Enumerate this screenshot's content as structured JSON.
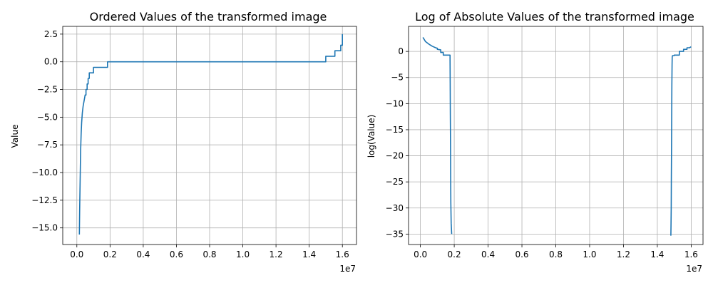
{
  "chart_data": [
    {
      "type": "line",
      "title": "Ordered Values of the transformed image",
      "xlabel": "",
      "ylabel": "Value",
      "x_multiplier_label": "1e7",
      "xlim": [
        -0.085,
        1.685
      ],
      "ylim": [
        -16.5,
        3.2
      ],
      "xticks": [
        0.0,
        0.2,
        0.4,
        0.6,
        0.8,
        1.0,
        1.2,
        1.4,
        1.6
      ],
      "xtick_labels": [
        "0.0",
        "0.2",
        "0.4",
        "0.6",
        "0.8",
        "1.0",
        "1.2",
        "1.4",
        "1.6"
      ],
      "yticks": [
        2.5,
        0.0,
        -2.5,
        -5.0,
        -7.5,
        -10.0,
        -12.5,
        -15.0
      ],
      "ytick_labels": [
        "2.5",
        "0.0",
        "−2.5",
        "−5.0",
        "−7.5",
        "−10.0",
        "−12.5",
        "−15.0"
      ],
      "grid": true,
      "color": "#1f77b4",
      "series": [
        {
          "x": [
            0.015,
            0.017,
            0.019,
            0.021,
            0.023,
            0.026,
            0.029,
            0.033,
            0.038,
            0.044,
            0.05,
            0.055,
            0.055,
            0.062,
            0.062,
            0.068,
            0.068,
            0.075,
            0.075,
            0.085,
            0.085,
            0.1,
            0.1,
            0.12,
            0.12,
            0.15,
            0.15,
            0.185,
            0.185,
            1.5,
            1.5,
            1.555,
            1.555,
            1.59,
            1.59,
            1.6,
            1.6
          ],
          "y": [
            -15.6,
            -13.5,
            -11.5,
            -9.5,
            -8.0,
            -6.5,
            -5.5,
            -4.6,
            -4.0,
            -3.5,
            -3.0,
            -3.0,
            -2.5,
            -2.5,
            -2.0,
            -2.0,
            -1.5,
            -1.5,
            -1.0,
            -1.0,
            -1.0,
            -1.0,
            -0.5,
            -0.5,
            -0.5,
            -0.5,
            -0.5,
            -0.5,
            0.0,
            0.0,
            0.5,
            0.5,
            1.0,
            1.0,
            1.5,
            1.5,
            2.5
          ]
        }
      ]
    },
    {
      "type": "line",
      "title": "Log of Absolute Values of the transformed image",
      "xlabel": "",
      "ylabel": "log(Value)",
      "x_multiplier_label": "1e7",
      "xlim": [
        -0.07,
        1.67
      ],
      "ylim": [
        -37.0,
        4.8
      ],
      "xticks": [
        0.0,
        0.2,
        0.4,
        0.6,
        0.8,
        1.0,
        1.2,
        1.4,
        1.6
      ],
      "xtick_labels": [
        "0.0",
        "0.2",
        "0.4",
        "0.6",
        "0.8",
        "1.0",
        "1.2",
        "1.4",
        "1.6"
      ],
      "yticks": [
        0,
        -5,
        -10,
        -15,
        -20,
        -25,
        -30,
        -35
      ],
      "ytick_labels": [
        "0",
        "−5",
        "−10",
        "−15",
        "−20",
        "−25",
        "−30",
        "−35"
      ],
      "grid": true,
      "color": "#1f77b4",
      "series": [
        {
          "x": [
            0.015,
            0.03,
            0.05,
            0.07,
            0.09,
            0.1,
            0.1,
            0.12,
            0.12,
            0.135,
            0.135,
            0.175,
            0.175,
            0.176,
            0.177,
            0.178,
            0.179,
            0.18,
            0.181,
            0.182,
            0.183,
            0.185
          ],
          "y": [
            2.7,
            1.9,
            1.4,
            1.0,
            0.7,
            0.6,
            0.4,
            0.3,
            -0.2,
            -0.2,
            -0.7,
            -0.7,
            -1.5,
            -6.0,
            -12.0,
            -18.0,
            -24.0,
            -29.0,
            -31.5,
            -33.0,
            -33.8,
            -35.0
          ]
        },
        {
          "x": [
            1.48,
            1.481,
            1.482,
            1.483,
            1.484,
            1.485,
            1.486,
            1.487,
            1.488,
            1.49,
            1.5,
            1.5,
            1.53,
            1.53,
            1.555,
            1.555,
            1.575,
            1.575,
            1.59,
            1.6
          ],
          "y": [
            -35.3,
            -33.5,
            -30.0,
            -24.0,
            -18.0,
            -12.0,
            -6.5,
            -2.5,
            -1.0,
            -0.8,
            -0.8,
            -0.7,
            -0.7,
            0.0,
            0.0,
            0.4,
            0.4,
            0.7,
            0.7,
            0.9
          ]
        }
      ]
    }
  ]
}
